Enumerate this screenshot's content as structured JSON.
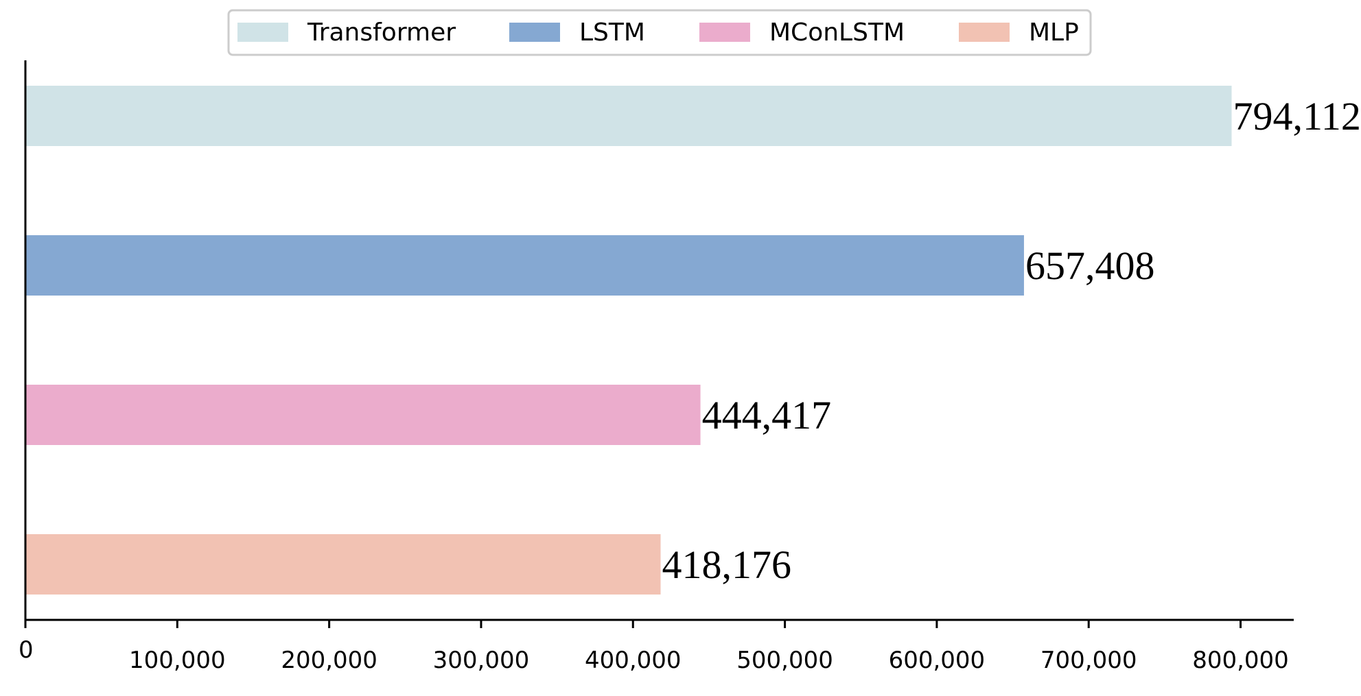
{
  "chart_data": {
    "type": "bar",
    "orientation": "horizontal",
    "title": "",
    "xlabel": "",
    "ylabel": "",
    "categories": [
      "Transformer",
      "LSTM",
      "MConLSTM",
      "MLP"
    ],
    "values": [
      794112,
      657408,
      444417,
      418176
    ],
    "value_labels": [
      "794,112",
      "657,408",
      "444,417",
      "418,176"
    ],
    "colors": [
      "#d0e3e7",
      "#85a8d2",
      "#ebaccc",
      "#f2c2b3"
    ],
    "xlim": [
      0,
      835000
    ],
    "xticks": [
      0,
      100000,
      200000,
      300000,
      400000,
      500000,
      600000,
      700000,
      800000
    ],
    "xtick_labels": [
      "0",
      "100,000",
      "200,000",
      "300,000",
      "400,000",
      "500,000",
      "600,000",
      "700,000",
      "800,000"
    ],
    "grid": false,
    "legend": {
      "position": "top-center",
      "entries": [
        "Transformer",
        "LSTM",
        "MConLSTM",
        "MLP"
      ]
    }
  }
}
